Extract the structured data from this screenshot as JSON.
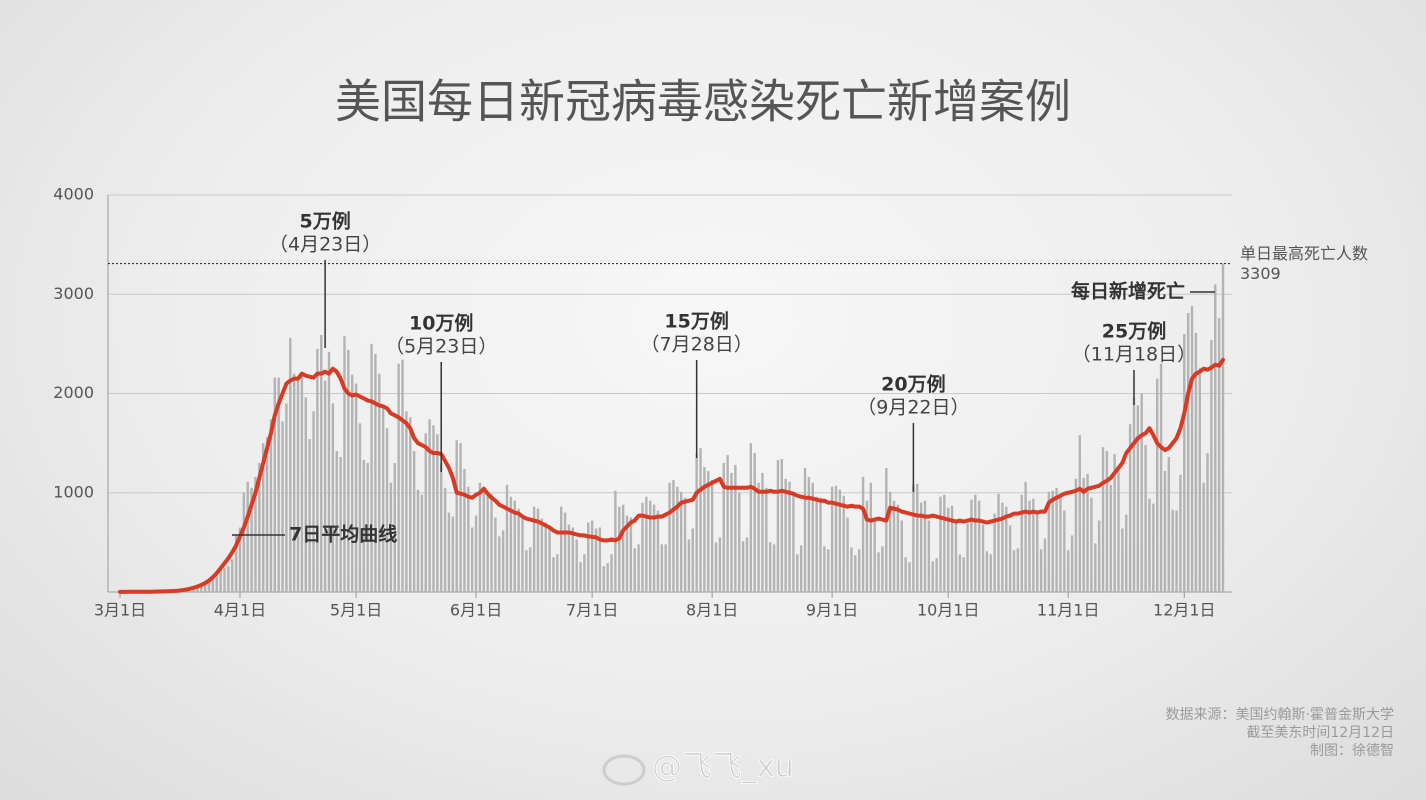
{
  "chart_data": {
    "type": "bar_line",
    "title": "美国每日新冠病毒感染死亡新增案例",
    "categories": [
      "3月1日",
      "3月2日",
      "3月3日",
      "3月4日",
      "3月5日",
      "3月6日",
      "3月7日",
      "3月8日",
      "3月9日",
      "3月10日",
      "3月11日",
      "3月12日",
      "3月13日",
      "3月14日",
      "3月15日",
      "3月16日",
      "3月17日",
      "3月18日",
      "3月19日",
      "3月20日",
      "3月21日",
      "3月22日",
      "3月23日",
      "3月24日",
      "3月25日",
      "3月26日",
      "3月27日",
      "3月28日",
      "3月29日",
      "3月30日",
      "3月31日",
      "4月1日",
      "4月2日",
      "4月3日",
      "4月4日",
      "4月5日",
      "4月6日",
      "4月7日",
      "4月8日",
      "4月9日",
      "4月10日",
      "4月11日",
      "4月12日",
      "4月13日",
      "4月14日",
      "4月15日",
      "4月16日",
      "4月17日",
      "4月18日",
      "4月19日",
      "4月20日",
      "4月21日",
      "4月22日",
      "4月23日",
      "4月24日",
      "4月25日",
      "4月26日",
      "4月27日",
      "4月28日",
      "4月29日",
      "4月30日",
      "5月1日",
      "5月2日",
      "5月3日",
      "5月4日",
      "5月5日",
      "5月6日",
      "5月7日",
      "5月8日",
      "5月9日",
      "5月10日",
      "5月11日",
      "5月12日",
      "5月13日",
      "5月14日",
      "5月15日",
      "5月16日",
      "5月17日",
      "5月18日",
      "5月19日",
      "5月20日",
      "5月21日",
      "5月22日",
      "5月23日",
      "5月24日",
      "5月25日",
      "5月26日",
      "5月27日",
      "5月28日",
      "5月29日",
      "5月30日",
      "5月31日",
      "6月1日",
      "6月2日",
      "6月3日",
      "6月4日",
      "6月5日",
      "6月6日",
      "6月7日",
      "6月8日",
      "6月9日",
      "6月10日",
      "6月11日",
      "6月12日",
      "6月13日",
      "6月14日",
      "6月15日",
      "6月16日",
      "6月17日",
      "6月18日",
      "6月19日",
      "6月20日",
      "6月21日",
      "6月22日",
      "6月23日",
      "6月24日",
      "6月25日",
      "6月26日",
      "6月27日",
      "6月28日",
      "6月29日",
      "6月30日",
      "7月1日",
      "7月2日",
      "7月3日",
      "7月4日",
      "7月5日",
      "7月6日",
      "7月7日",
      "7月8日",
      "7月9日",
      "7月10日",
      "7月11日",
      "7月12日",
      "7月13日",
      "7月14日",
      "7月15日",
      "7月16日",
      "7月17日",
      "7月18日",
      "7月19日",
      "7月20日",
      "7月21日",
      "7月22日",
      "7月23日",
      "7月24日",
      "7月25日",
      "7月26日",
      "7月27日",
      "7月28日",
      "7月29日",
      "7月30日",
      "7月31日",
      "8月1日",
      "8月2日",
      "8月3日",
      "8月4日",
      "8月5日",
      "8月6日",
      "8月7日",
      "8月8日",
      "8月9日",
      "8月10日",
      "8月11日",
      "8月12日",
      "8月13日",
      "8月14日",
      "8月15日",
      "8月16日",
      "8月17日",
      "8月18日",
      "8月19日",
      "8月20日",
      "8月21日",
      "8月22日",
      "8月23日",
      "8月24日",
      "8月25日",
      "8月26日",
      "8月27日",
      "8月28日",
      "8月29日",
      "8月30日",
      "8月31日",
      "9月1日",
      "9月2日",
      "9月3日",
      "9月4日",
      "9月5日",
      "9月6日",
      "9月7日",
      "9月8日",
      "9月9日",
      "9月10日",
      "9月11日",
      "9月12日",
      "9月13日",
      "9月14日",
      "9月15日",
      "9月16日",
      "9月17日",
      "9月18日",
      "9月19日",
      "9月20日",
      "9月21日",
      "9月22日",
      "9月23日",
      "9月24日",
      "9月25日",
      "9月26日",
      "9月27日",
      "9月28日",
      "9月29日",
      "9月30日",
      "10月1日",
      "10月2日",
      "10月3日",
      "10月4日",
      "10月5日",
      "10月6日",
      "10月7日",
      "10月8日",
      "10月9日",
      "10月10日",
      "10月11日",
      "10月12日",
      "10月13日",
      "10月14日",
      "10月15日",
      "10月16日",
      "10月17日",
      "10月18日",
      "10月19日",
      "10月20日",
      "10月21日",
      "10月22日",
      "10月23日",
      "10月24日",
      "10月25日",
      "10月26日",
      "10月27日",
      "10月28日",
      "10月29日",
      "10月30日",
      "10月31日",
      "11月1日",
      "11月2日",
      "11月3日",
      "11月4日",
      "11月5日",
      "11月6日",
      "11月7日",
      "11月8日",
      "11月9日",
      "11月10日",
      "11月11日",
      "11月12日",
      "11月13日",
      "11月14日",
      "11月15日",
      "11月16日",
      "11月17日",
      "11月18日",
      "11月19日",
      "11月20日",
      "11月21日",
      "11月22日",
      "11月23日",
      "11月24日",
      "11月25日",
      "11月26日",
      "11月27日",
      "11月28日",
      "11月29日",
      "11月30日",
      "12月1日",
      "12月2日",
      "12月3日",
      "12月4日",
      "12月5日",
      "12月6日",
      "12月7日",
      "12月8日",
      "12月9日",
      "12月10日",
      "12月11日"
    ],
    "series": [
      {
        "name": "每日新增死亡",
        "type": "bar",
        "color": "#b3b3b3",
        "values": [
          0,
          1,
          1,
          3,
          2,
          2,
          1,
          1,
          4,
          5,
          7,
          6,
          10,
          8,
          8,
          12,
          22,
          30,
          40,
          55,
          45,
          55,
          70,
          120,
          160,
          200,
          260,
          240,
          260,
          330,
          580,
          650,
          1000,
          1110,
          1050,
          1160,
          1300,
          1500,
          1560,
          1740,
          2160,
          2160,
          1720,
          1900,
          2560,
          2200,
          2170,
          2200,
          1960,
          1540,
          1820,
          2450,
          2590,
          2130,
          2420,
          1900,
          1420,
          1360,
          2580,
          2440,
          2190,
          2100,
          1700,
          1330,
          1300,
          2500,
          2400,
          2200,
          1850,
          1650,
          1100,
          1300,
          2300,
          2340,
          1820,
          1760,
          1420,
          1030,
          980,
          1600,
          1740,
          1680,
          1590,
          1300,
          1050,
          800,
          760,
          1530,
          1500,
          1240,
          1060,
          650,
          770,
          1100,
          1050,
          1010,
          990,
          750,
          560,
          620,
          1080,
          960,
          920,
          840,
          760,
          420,
          450,
          860,
          840,
          740,
          700,
          630,
          350,
          380,
          860,
          800,
          680,
          650,
          530,
          300,
          380,
          700,
          720,
          640,
          650,
          260,
          290,
          380,
          1020,
          860,
          880,
          770,
          750,
          440,
          480,
          900,
          960,
          920,
          880,
          820,
          480,
          480,
          1100,
          1130,
          1060,
          1010,
          950,
          530,
          640,
          1400,
          1450,
          1260,
          1220,
          1130,
          500,
          550,
          1300,
          1380,
          1200,
          1280,
          1000,
          510,
          550,
          1500,
          1400,
          1100,
          1200,
          1050,
          500,
          480,
          1330,
          1340,
          1140,
          1110,
          1010,
          380,
          470,
          1250,
          1160,
          1100,
          960,
          950,
          460,
          430,
          1060,
          1070,
          1030,
          970,
          750,
          450,
          370,
          430,
          1160,
          920,
          1100,
          750,
          400,
          460,
          1250,
          1010,
          920,
          880,
          720,
          350,
          300,
          1080,
          1090,
          900,
          920,
          720,
          310,
          340,
          960,
          980,
          850,
          870,
          720,
          380,
          350,
          690,
          930,
          980,
          920,
          680,
          410,
          380,
          790,
          990,
          900,
          860,
          670,
          420,
          440,
          980,
          1110,
          920,
          940,
          780,
          430,
          540,
          1010,
          1020,
          1050,
          990,
          820,
          420,
          570,
          1140,
          1580,
          1150,
          1190,
          950,
          490,
          720,
          1460,
          1420,
          1080,
          1390,
          1230,
          640,
          780,
          1690,
          1960,
          1880,
          2000,
          1480,
          940,
          890,
          2150,
          2300,
          1220,
          1360,
          830,
          820,
          1180,
          2600,
          2810,
          2880,
          2610,
          2260,
          1100,
          1400,
          2540,
          3100,
          2760,
          3309
        ]
      },
      {
        "name": "7日平均曲线",
        "type": "line",
        "color": "#d83a24",
        "values": [
          1,
          1,
          2,
          2,
          2,
          2,
          2,
          2,
          3,
          4,
          5,
          6,
          7,
          9,
          10,
          13,
          18,
          24,
          32,
          42,
          55,
          70,
          90,
          115,
          150,
          190,
          240,
          290,
          340,
          400,
          470,
          560,
          650,
          760,
          880,
          1000,
          1150,
          1300,
          1450,
          1600,
          1780,
          1900,
          2000,
          2100,
          2130,
          2150,
          2150,
          2200,
          2180,
          2170,
          2160,
          2200,
          2200,
          2220,
          2200,
          2250,
          2220,
          2150,
          2050,
          2000,
          1980,
          1990,
          1970,
          1950,
          1930,
          1920,
          1900,
          1880,
          1870,
          1850,
          1800,
          1780,
          1760,
          1730,
          1700,
          1650,
          1550,
          1500,
          1480,
          1460,
          1420,
          1400,
          1400,
          1390,
          1320,
          1250,
          1150,
          1000,
          990,
          980,
          960,
          950,
          980,
          1000,
          1040,
          990,
          950,
          920,
          880,
          860,
          840,
          820,
          800,
          790,
          760,
          740,
          730,
          720,
          710,
          690,
          670,
          650,
          620,
          600,
          600,
          600,
          600,
          590,
          580,
          570,
          570,
          560,
          555,
          550,
          530,
          520,
          520,
          530,
          520,
          540,
          620,
          660,
          700,
          720,
          770,
          770,
          760,
          750,
          750,
          760,
          760,
          780,
          800,
          830,
          860,
          900,
          910,
          920,
          930,
          1000,
          1030,
          1060,
          1080,
          1100,
          1120,
          1140,
          1060,
          1050,
          1050,
          1050,
          1050,
          1050,
          1050,
          1060,
          1040,
          1010,
          1010,
          1010,
          1020,
          1010,
          1010,
          1020,
          1010,
          1000,
          990,
          970,
          960,
          950,
          950,
          940,
          930,
          920,
          920,
          900,
          900,
          890,
          880,
          870,
          860,
          870,
          860,
          860,
          840,
          730,
          720,
          730,
          740,
          730,
          720,
          850,
          840,
          830,
          810,
          800,
          790,
          780,
          770,
          770,
          760,
          760,
          770,
          760,
          750,
          740,
          730,
          720,
          710,
          720,
          710,
          720,
          730,
          720,
          720,
          710,
          700,
          710,
          720,
          730,
          740,
          760,
          770,
          790,
          790,
          800,
          810,
          800,
          810,
          800,
          810,
          810,
          900,
          930,
          950,
          970,
          990,
          1000,
          1010,
          1020,
          1040,
          1010,
          1040,
          1050,
          1060,
          1070,
          1100,
          1120,
          1150,
          1200,
          1250,
          1300,
          1400,
          1450,
          1500,
          1550,
          1580,
          1600,
          1650,
          1580,
          1500,
          1460,
          1430,
          1450,
          1500,
          1550,
          1650,
          1800,
          2000,
          2150,
          2200,
          2220,
          2250,
          2240,
          2260,
          2290,
          2280,
          2340
        ]
      }
    ],
    "ylim": [
      0,
      4000
    ],
    "yticks": [
      1000,
      2000,
      3000,
      4000
    ],
    "xticks": [
      "3月1日",
      "4月1日",
      "5月1日",
      "6月1日",
      "7月1日",
      "8月1日",
      "9月1日",
      "10月1日",
      "11月1日",
      "12月1日"
    ],
    "grid": true,
    "reference_line": {
      "label": "单日最高死亡人数",
      "value": 3309
    },
    "annotations": [
      {
        "label": "5万例",
        "date": "（4月23日）",
        "x": "4月23日"
      },
      {
        "label": "10万例",
        "date": "（5月23日）",
        "x": "5月23日"
      },
      {
        "label": "15万例",
        "date": "（7月28日）",
        "x": "7月28日"
      },
      {
        "label": "20万例",
        "date": "（9月22日）",
        "x": "9月22日"
      },
      {
        "label": "25万例",
        "date": "（11月18日）",
        "x": "11月18日"
      }
    ],
    "source": [
      "数据来源：美国约翰斯·霍普金斯大学",
      "截至美东时间12月12日",
      "制图：徐德智"
    ],
    "watermark": "@飞飞_xu"
  }
}
